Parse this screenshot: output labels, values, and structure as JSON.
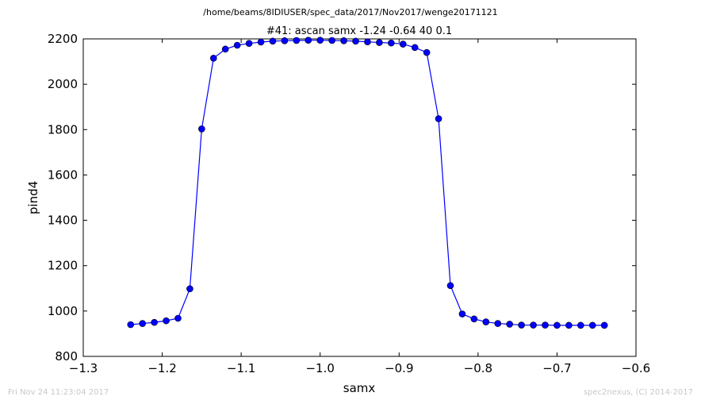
{
  "header": {
    "path": "/home/beams/8IDIUSER/spec_data/2017/Nov2017/wenge20171121"
  },
  "footer": {
    "timestamp": "Fri Nov 24 11:23:04 2017",
    "credit": "spec2nexus, (C) 2014-2017"
  },
  "chart_data": {
    "type": "line",
    "title": "#41: ascan  samx -1.24 -0.64  40 0.1",
    "xlabel": "samx",
    "ylabel": "pind4",
    "xlim": [
      -1.3,
      -0.6
    ],
    "ylim": [
      800,
      2200
    ],
    "xticks": [
      -1.3,
      -1.2,
      -1.1,
      -1.0,
      -0.9,
      -0.8,
      -0.7,
      -0.6
    ],
    "xtick_labels": [
      "−1.3",
      "−1.2",
      "−1.1",
      "−1.0",
      "−0.9",
      "−0.8",
      "−0.7",
      "−0.6"
    ],
    "yticks": [
      800,
      1000,
      1200,
      1400,
      1600,
      1800,
      2000,
      2200
    ],
    "ytick_labels": [
      "800",
      "1000",
      "1200",
      "1400",
      "1600",
      "1800",
      "2000",
      "2200"
    ],
    "grid": false,
    "series": [
      {
        "color": "#0000ff",
        "marker": "circle",
        "x": [
          -1.24,
          -1.225,
          -1.21,
          -1.195,
          -1.18,
          -1.165,
          -1.15,
          -1.135,
          -1.12,
          -1.105,
          -1.09,
          -1.075,
          -1.06,
          -1.045,
          -1.03,
          -1.015,
          -1.0,
          -0.985,
          -0.97,
          -0.955,
          -0.94,
          -0.925,
          -0.91,
          -0.895,
          -0.88,
          -0.865,
          -0.85,
          -0.835,
          -0.82,
          -0.805,
          -0.79,
          -0.775,
          -0.76,
          -0.745,
          -0.73,
          -0.715,
          -0.7,
          -0.685,
          -0.67,
          -0.655,
          -0.64
        ],
        "y": [
          940,
          945,
          950,
          957,
          968,
          1098,
          1803,
          2115,
          2155,
          2172,
          2180,
          2186,
          2190,
          2192,
          2193,
          2194,
          2194,
          2193,
          2192,
          2190,
          2187,
          2184,
          2182,
          2177,
          2162,
          2140,
          1848,
          1112,
          987,
          965,
          952,
          945,
          942,
          938,
          938,
          938,
          937,
          937,
          937,
          937,
          937
        ]
      }
    ]
  }
}
